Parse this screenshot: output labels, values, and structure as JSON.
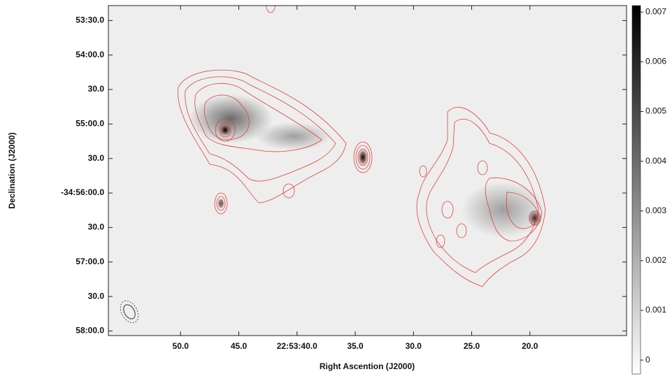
{
  "chart_data": {
    "type": "image",
    "xlabel": "Right Ascention (J2000)",
    "ylabel": "Declination (J2000)",
    "xlim": [
      56.2,
      11.7
    ],
    "xticks": [
      {
        "value": 50,
        "label": "50.0"
      },
      {
        "value": 45,
        "label": "45.0"
      },
      {
        "value": 40,
        "label": "22:53:40.0"
      },
      {
        "value": 35,
        "label": "35.0"
      },
      {
        "value": 30,
        "label": "30.0"
      },
      {
        "value": 25,
        "label": "25.0"
      },
      {
        "value": 20,
        "label": "20.0"
      }
    ],
    "ylim": [
      -125884,
      -125597
    ],
    "yticks": [
      {
        "value": -125610,
        "label": "53:30.0"
      },
      {
        "value": -125640,
        "label": "54:00.0"
      },
      {
        "value": -125670,
        "label": "30.0"
      },
      {
        "value": -125700,
        "label": "55:00.0"
      },
      {
        "value": -125730,
        "label": "30.0"
      },
      {
        "value": -125760,
        "label": "-34:56:00.0"
      },
      {
        "value": -125790,
        "label": "30.0"
      },
      {
        "value": -125820,
        "label": "57:00.0"
      },
      {
        "value": -125850,
        "label": "30.0"
      },
      {
        "value": -125880,
        "label": "58:00.0"
      }
    ],
    "colorbar_lim": [
      -0.00028,
      0.00713
    ],
    "colorbar_ticks": [
      0,
      0.001,
      0.002,
      0.003,
      0.004,
      0.005,
      0.006,
      0.007
    ],
    "contour_color": "#e0413a"
  }
}
